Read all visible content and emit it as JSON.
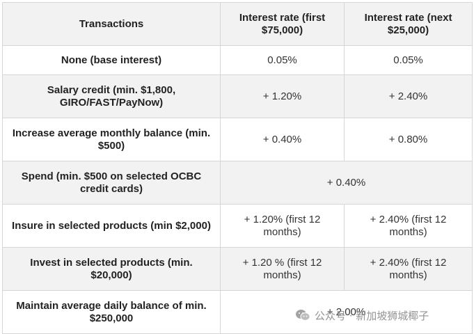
{
  "table": {
    "headers": [
      "Transactions",
      "Interest rate (first $75,000)",
      "Interest rate (next $25,000)"
    ],
    "rows": [
      {
        "label": "None (base interest)",
        "first": "0.05%",
        "next": "0.05%"
      },
      {
        "label": "Salary credit (min. $1,800, GIRO/FAST/PayNow)",
        "first": "+ 1.20%",
        "next": "+ 2.40%"
      },
      {
        "label": "Increase average monthly balance (min. $500)",
        "first": "+ 0.40%",
        "next": "+ 0.80%"
      },
      {
        "label": "Spend (min. $500 on selected OCBC credit cards)",
        "merged": "+ 0.40%"
      },
      {
        "label": "Insure in selected products (min $2,000)",
        "first": "+ 1.20% (first 12 months)",
        "next": "+ 2.40% (first 12 months)"
      },
      {
        "label": "Invest in selected products (min. $20,000)",
        "first": "+ 1.20 % (first 12 months)",
        "next": "+ 2.40% (first 12 months)"
      },
      {
        "label": "Maintain average daily balance of min. $250,000",
        "merged": "+ 2.00%"
      }
    ]
  },
  "watermark": {
    "text": "公众号 · 新加坡狮城椰子",
    "icon": "wechat-icon"
  }
}
